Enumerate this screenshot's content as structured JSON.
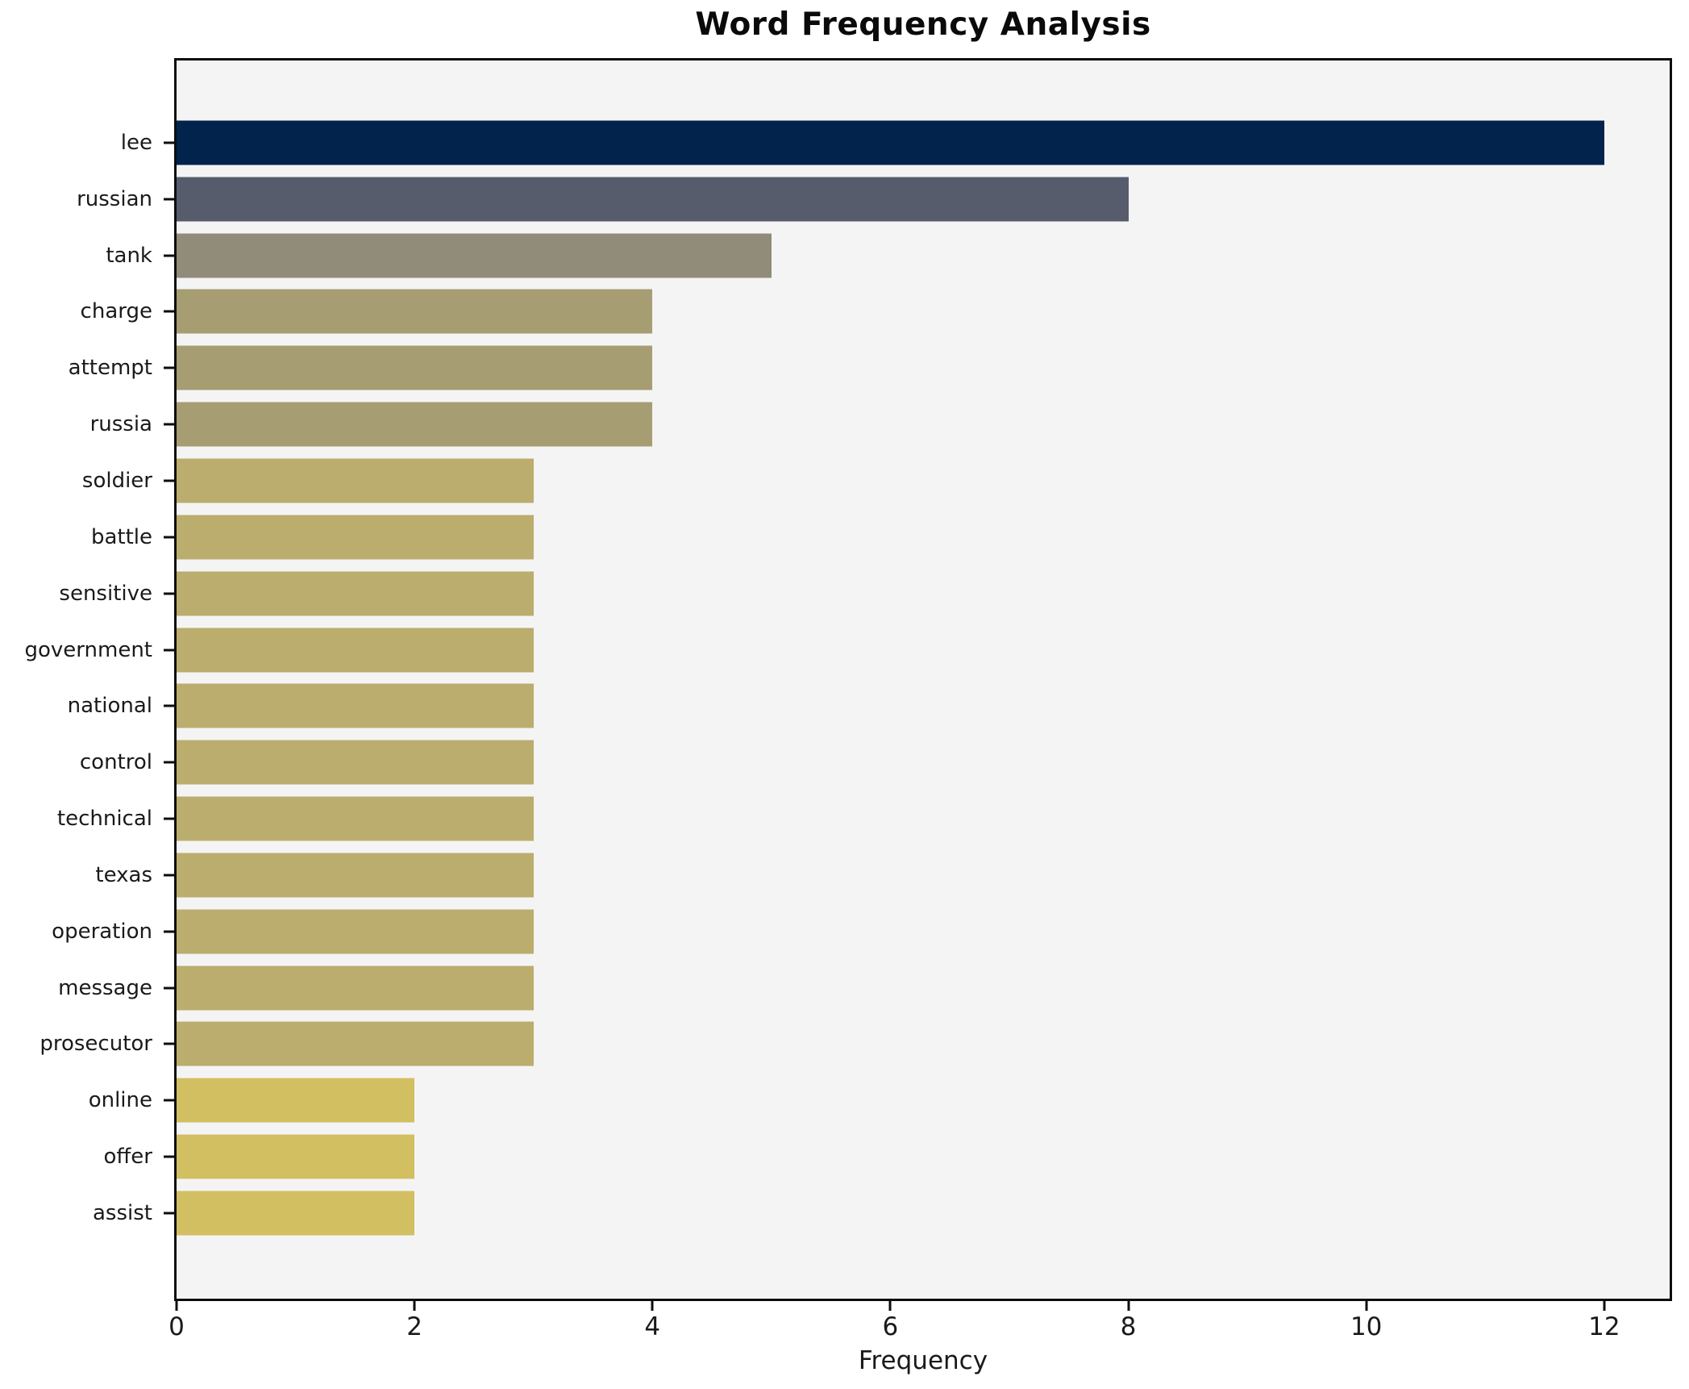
{
  "chart": {
    "title": "Word Frequency Analysis",
    "xlabel": "Frequency"
  },
  "chart_data": {
    "type": "bar",
    "orientation": "horizontal",
    "title": "Word Frequency Analysis",
    "xlabel": "Frequency",
    "ylabel": "",
    "categories": [
      "lee",
      "russian",
      "tank",
      "charge",
      "attempt",
      "russia",
      "soldier",
      "battle",
      "sensitive",
      "government",
      "national",
      "control",
      "technical",
      "texas",
      "operation",
      "message",
      "prosecutor",
      "online",
      "offer",
      "assist"
    ],
    "values": [
      12,
      8,
      5,
      4,
      4,
      4,
      3,
      3,
      3,
      3,
      3,
      3,
      3,
      3,
      3,
      3,
      3,
      2,
      2,
      2
    ],
    "bar_colors": [
      "#01234c",
      "#575c6c",
      "#918c7a",
      "#a69d72",
      "#a69d72",
      "#a69d72",
      "#bbad6d",
      "#bbad6d",
      "#bbad6d",
      "#bbad6d",
      "#bbad6d",
      "#bbad6d",
      "#bbad6d",
      "#bbad6d",
      "#bbad6d",
      "#bbad6d",
      "#bbad6d",
      "#d2bf62",
      "#d2bf62",
      "#d2bf62"
    ],
    "x_ticks": [
      0,
      2,
      4,
      6,
      8,
      10,
      12
    ],
    "xlim": [
      0,
      12.55
    ],
    "grid": false,
    "legend_position": "none",
    "colormap": "cividis",
    "plot_background": "#f5f4f5",
    "figure_background": "#ffffff"
  }
}
